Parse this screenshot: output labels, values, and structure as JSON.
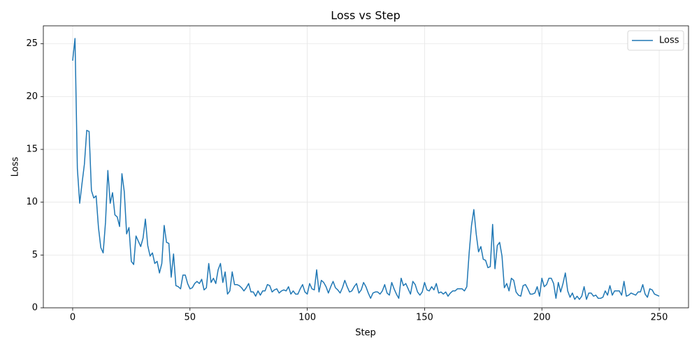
{
  "chart_data": {
    "type": "line",
    "title": "Loss vs Step",
    "x_label": "Step",
    "y_label": "Loss",
    "x": [
      0,
      1,
      2,
      3,
      4,
      5,
      6,
      7,
      8,
      9,
      10,
      11,
      12,
      13,
      14,
      15,
      16,
      17,
      18,
      19,
      20,
      21,
      22,
      23,
      24,
      25,
      26,
      27,
      28,
      29,
      30,
      31,
      32,
      33,
      34,
      35,
      36,
      37,
      38,
      39,
      40,
      41,
      42,
      43,
      44,
      45,
      46,
      47,
      48,
      49,
      50,
      51,
      52,
      53,
      54,
      55,
      56,
      57,
      58,
      59,
      60,
      61,
      62,
      63,
      64,
      65,
      66,
      67,
      68,
      69,
      70,
      71,
      72,
      73,
      74,
      75,
      76,
      77,
      78,
      79,
      80,
      81,
      82,
      83,
      84,
      85,
      86,
      87,
      88,
      89,
      90,
      91,
      92,
      93,
      94,
      95,
      96,
      97,
      98,
      99,
      100,
      101,
      102,
      103,
      104,
      105,
      106,
      107,
      108,
      109,
      110,
      111,
      112,
      113,
      114,
      115,
      116,
      117,
      118,
      119,
      120,
      121,
      122,
      123,
      124,
      125,
      126,
      127,
      128,
      129,
      130,
      131,
      132,
      133,
      134,
      135,
      136,
      137,
      138,
      139,
      140,
      141,
      142,
      143,
      144,
      145,
      146,
      147,
      148,
      149,
      150,
      151,
      152,
      153,
      154,
      155,
      156,
      157,
      158,
      159,
      160,
      161,
      162,
      163,
      164,
      165,
      166,
      167,
      168,
      169,
      170,
      171,
      172,
      173,
      174,
      175,
      176,
      177,
      178,
      179,
      180,
      181,
      182,
      183,
      184,
      185,
      186,
      187,
      188,
      189,
      190,
      191,
      192,
      193,
      194,
      195,
      196,
      197,
      198,
      199,
      200,
      201,
      202,
      203,
      204,
      205,
      206,
      207,
      208,
      209,
      210,
      211,
      212,
      213,
      214,
      215,
      216,
      217,
      218,
      219,
      220,
      221,
      222,
      223,
      224,
      225,
      226,
      227,
      228,
      229,
      230,
      231,
      232,
      233,
      234,
      235,
      236,
      237,
      238,
      239,
      240,
      241,
      242,
      243,
      244,
      245,
      246,
      247,
      248,
      249,
      250
    ],
    "series": [
      {
        "name": "Loss",
        "color": "#1f77b4",
        "values": [
          23.4,
          25.5,
          13.2,
          9.9,
          11.8,
          13.6,
          16.8,
          16.7,
          11.1,
          10.4,
          10.6,
          7.6,
          5.7,
          5.2,
          8.1,
          13.0,
          9.9,
          10.9,
          8.8,
          8.6,
          7.7,
          12.7,
          11.0,
          7.0,
          7.6,
          4.4,
          4.1,
          6.8,
          6.3,
          5.8,
          6.6,
          8.4,
          5.9,
          4.9,
          5.2,
          4.2,
          4.4,
          3.3,
          4.2,
          7.8,
          6.2,
          6.1,
          2.9,
          5.1,
          2.1,
          2.0,
          1.8,
          3.1,
          3.1,
          2.3,
          1.8,
          1.9,
          2.3,
          2.5,
          2.3,
          2.7,
          1.7,
          1.9,
          4.2,
          2.4,
          2.8,
          2.3,
          3.6,
          4.2,
          2.4,
          3.4,
          1.3,
          1.6,
          3.4,
          2.2,
          2.2,
          2.1,
          1.9,
          1.6,
          1.9,
          2.3,
          1.5,
          1.5,
          1.1,
          1.6,
          1.2,
          1.6,
          1.6,
          2.2,
          2.1,
          1.5,
          1.7,
          1.8,
          1.4,
          1.6,
          1.7,
          1.6,
          2.0,
          1.3,
          1.6,
          1.3,
          1.3,
          1.8,
          2.2,
          1.5,
          1.3,
          2.3,
          1.8,
          1.7,
          3.6,
          1.5,
          2.6,
          2.4,
          2.0,
          1.4,
          2.0,
          2.5,
          1.9,
          1.7,
          1.4,
          1.9,
          2.6,
          2.0,
          1.5,
          1.6,
          2.0,
          2.3,
          1.4,
          1.7,
          2.4,
          2.0,
          1.4,
          0.9,
          1.4,
          1.5,
          1.5,
          1.3,
          1.6,
          2.2,
          1.4,
          1.2,
          2.4,
          1.8,
          1.3,
          0.9,
          2.8,
          2.1,
          2.3,
          1.8,
          1.3,
          2.5,
          2.2,
          1.5,
          1.2,
          1.5,
          2.4,
          1.7,
          1.6,
          2.0,
          1.7,
          2.3,
          1.4,
          1.5,
          1.3,
          1.5,
          1.1,
          1.4,
          1.6,
          1.6,
          1.8,
          1.8,
          1.8,
          1.6,
          2.0,
          5.2,
          7.8,
          9.3,
          7.0,
          5.3,
          5.8,
          4.6,
          4.5,
          3.8,
          3.9,
          7.9,
          3.7,
          5.9,
          6.2,
          4.9,
          1.9,
          2.3,
          1.6,
          2.8,
          2.6,
          1.5,
          1.2,
          1.1,
          2.1,
          2.2,
          1.8,
          1.3,
          1.3,
          1.4,
          2.0,
          1.1,
          2.8,
          2.0,
          2.2,
          2.8,
          2.8,
          2.3,
          0.9,
          2.4,
          1.5,
          2.3,
          3.3,
          1.6,
          1.0,
          1.4,
          0.8,
          1.1,
          0.8,
          1.1,
          2.0,
          0.8,
          1.4,
          1.4,
          1.1,
          1.2,
          0.9,
          0.9,
          1.0,
          1.6,
          1.2,
          2.1,
          1.2,
          1.6,
          1.6,
          1.6,
          1.2,
          2.5,
          1.1,
          1.2,
          1.4,
          1.3,
          1.2,
          1.5,
          1.5,
          2.2,
          1.3,
          1.0,
          1.8,
          1.7,
          1.3,
          1.2,
          1.1
        ]
      }
    ],
    "xlim": [
      -12.5,
      262.5
    ],
    "xticks": [
      0,
      50,
      100,
      150,
      200,
      250
    ],
    "ylim": [
      0,
      26.7
    ],
    "yticks": [
      0,
      5,
      10,
      15,
      20,
      25
    ],
    "grid": true,
    "legend": "upper right"
  }
}
